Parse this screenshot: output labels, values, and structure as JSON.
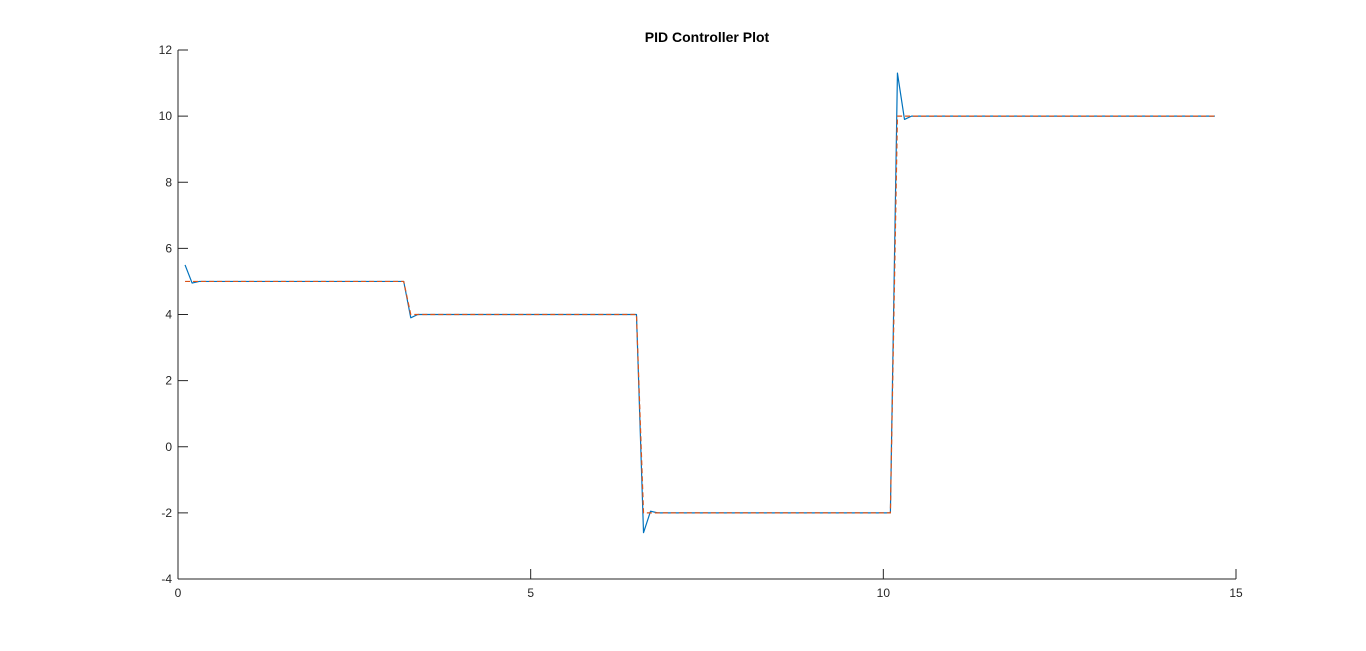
{
  "chart_data": {
    "type": "line",
    "title": "PID Controller Plot",
    "xlabel": "",
    "ylabel": "",
    "xlim": [
      0,
      15
    ],
    "ylim": [
      -4,
      12
    ],
    "xticks": [
      0,
      5,
      10,
      15
    ],
    "yticks": [
      -4,
      -2,
      0,
      2,
      4,
      6,
      8,
      10,
      12
    ],
    "grid": false,
    "legend": "none",
    "series": [
      {
        "color": "#0072BD",
        "style": "solid",
        "x": [
          0.1,
          0.2,
          0.3,
          3.2,
          3.3,
          3.4,
          3.5,
          6.5,
          6.6,
          6.7,
          6.8,
          10.1,
          10.2,
          10.3,
          10.4,
          14.7
        ],
        "y": [
          5.5,
          4.95,
          5.0,
          5.0,
          3.9,
          4.0,
          4.0,
          4.0,
          -2.6,
          -1.95,
          -2.0,
          -2.0,
          11.3,
          9.9,
          10.0,
          10.0
        ]
      },
      {
        "color": "#D95319",
        "style": "dashed",
        "x": [
          0.1,
          3.2,
          3.3,
          6.5,
          6.6,
          10.1,
          10.2,
          14.7
        ],
        "y": [
          5.0,
          5.0,
          4.0,
          4.0,
          -2.0,
          -2.0,
          10.0,
          10.0
        ]
      }
    ]
  }
}
